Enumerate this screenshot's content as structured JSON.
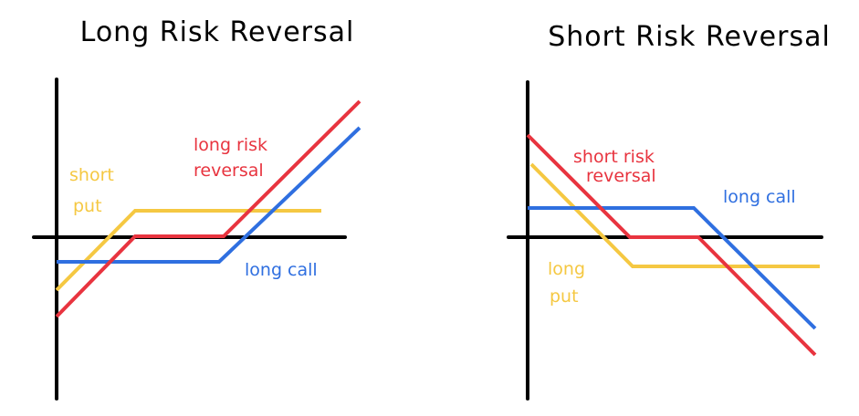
{
  "colors": {
    "axis": "#000000",
    "red": "#e8343f",
    "yellow": "#f5c842",
    "blue": "#2f6fe0"
  },
  "left": {
    "title": "Long Risk Reversal",
    "labels": {
      "put_line1": "short",
      "put_line2": "put",
      "rr_line1": "long risk",
      "rr_line2": "reversal",
      "call": "long call"
    }
  },
  "right": {
    "title": "Short Risk Reversal",
    "labels": {
      "rr_line1": "short risk",
      "rr_line2": "reversal",
      "call": "long call",
      "put_line1": "long",
      "put_line2": "put"
    }
  }
}
